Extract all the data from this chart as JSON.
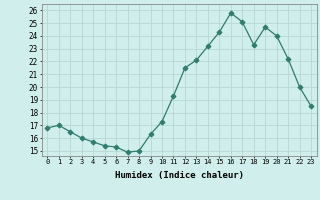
{
  "x": [
    0,
    1,
    2,
    3,
    4,
    5,
    6,
    7,
    8,
    9,
    10,
    11,
    12,
    13,
    14,
    15,
    16,
    17,
    18,
    19,
    20,
    21,
    22,
    23
  ],
  "y": [
    16.8,
    17.0,
    16.5,
    16.0,
    15.7,
    15.4,
    15.3,
    14.9,
    15.0,
    16.3,
    17.3,
    19.3,
    21.5,
    22.1,
    23.2,
    24.3,
    25.8,
    25.1,
    23.3,
    24.7,
    24.0,
    22.2,
    20.0,
    18.5
  ],
  "line_color": "#2e7d6e",
  "marker": "D",
  "marker_size": 2.5,
  "bg_color": "#d0eeeb",
  "grid_color": "#b8d8d4",
  "xlabel": "Humidex (Indice chaleur)",
  "ylabel_ticks": [
    15,
    16,
    17,
    18,
    19,
    20,
    21,
    22,
    23,
    24,
    25,
    26
  ],
  "ylim": [
    14.6,
    26.5
  ],
  "xlim": [
    -0.5,
    23.5
  ],
  "title": ""
}
